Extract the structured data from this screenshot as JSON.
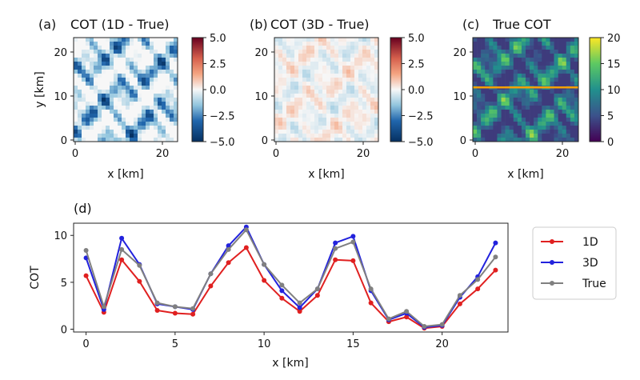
{
  "chart_data": [
    {
      "type": "heatmap",
      "panel_label": "(a)",
      "title": "COT (1D - True)",
      "xlabel": "x [km]",
      "ylabel": "y [km]",
      "xticks": [
        "0",
        "20"
      ],
      "yticks": [
        "0",
        "10",
        "20"
      ],
      "xlim": [
        0,
        24
      ],
      "ylim": [
        0,
        24
      ],
      "colormap": "RdBu_r",
      "colorbar_range": [
        -5.0,
        5.0
      ],
      "colorbar_ticks": [
        "5.0",
        "2.5",
        "0.0",
        "−2.5",
        "−5.0"
      ]
    },
    {
      "type": "heatmap",
      "panel_label": "(b)",
      "title": "COT (3D - True)",
      "xlabel": "x [km]",
      "ylabel": "",
      "xticks": [
        "0",
        "20"
      ],
      "yticks": [
        "0",
        "10",
        "20"
      ],
      "xlim": [
        0,
        24
      ],
      "ylim": [
        0,
        24
      ],
      "colormap": "RdBu_r",
      "colorbar_range": [
        -5.0,
        5.0
      ],
      "colorbar_ticks": [
        "5.0",
        "2.5",
        "0.0",
        "−2.5",
        "−5.0"
      ]
    },
    {
      "type": "heatmap",
      "panel_label": "(c)",
      "title": "True COT",
      "xlabel": "x [km]",
      "ylabel": "",
      "xticks": [
        "0",
        "20"
      ],
      "yticks": [
        "0",
        "10",
        "20"
      ],
      "xlim": [
        0,
        24
      ],
      "ylim": [
        0,
        24
      ],
      "colormap": "viridis",
      "colorbar_range": [
        0,
        20
      ],
      "colorbar_ticks": [
        "20",
        "15",
        "10",
        "5",
        "0"
      ],
      "transect_y": 12.5,
      "transect_color": "#f5a000"
    },
    {
      "type": "line",
      "panel_label": "(d)",
      "xlabel": "x [km]",
      "ylabel": "COT",
      "xlim": [
        -0.7,
        23.7
      ],
      "ylim": [
        -0.3,
        11.3
      ],
      "xticks": [
        0,
        5,
        10,
        15,
        20
      ],
      "yticks": [
        0,
        5,
        10
      ],
      "x": [
        0,
        1,
        2,
        3,
        4,
        5,
        6,
        7,
        8,
        9,
        10,
        11,
        12,
        13,
        14,
        15,
        16,
        17,
        18,
        19,
        20,
        21,
        22,
        23
      ],
      "legend_position": "right",
      "series": [
        {
          "name": "1D",
          "color": "#e02020",
          "values": [
            5.7,
            1.8,
            7.4,
            5.1,
            2.0,
            1.7,
            1.6,
            4.6,
            7.1,
            8.7,
            5.2,
            3.3,
            1.9,
            3.6,
            7.4,
            7.3,
            2.8,
            0.8,
            1.3,
            0.1,
            0.3,
            2.7,
            4.3,
            6.3
          ]
        },
        {
          "name": "3D",
          "color": "#2222dd",
          "values": [
            7.6,
            2.1,
            9.7,
            6.9,
            2.7,
            2.4,
            2.1,
            5.9,
            8.9,
            10.9,
            6.9,
            4.1,
            2.3,
            4.3,
            9.2,
            9.9,
            4.1,
            1.0,
            1.7,
            0.2,
            0.4,
            3.4,
            5.6,
            9.2
          ]
        },
        {
          "name": "True",
          "color": "#808080",
          "values": [
            8.4,
            2.4,
            8.5,
            6.8,
            2.8,
            2.4,
            2.2,
            5.9,
            8.5,
            10.6,
            6.9,
            4.7,
            2.8,
            4.3,
            8.6,
            9.3,
            4.3,
            1.1,
            1.9,
            0.3,
            0.5,
            3.6,
            5.3,
            7.7
          ]
        }
      ]
    }
  ],
  "colors": {
    "transect": "#f5a000",
    "line_1D": "#e02020",
    "line_3D": "#2222dd",
    "line_True": "#808080"
  }
}
